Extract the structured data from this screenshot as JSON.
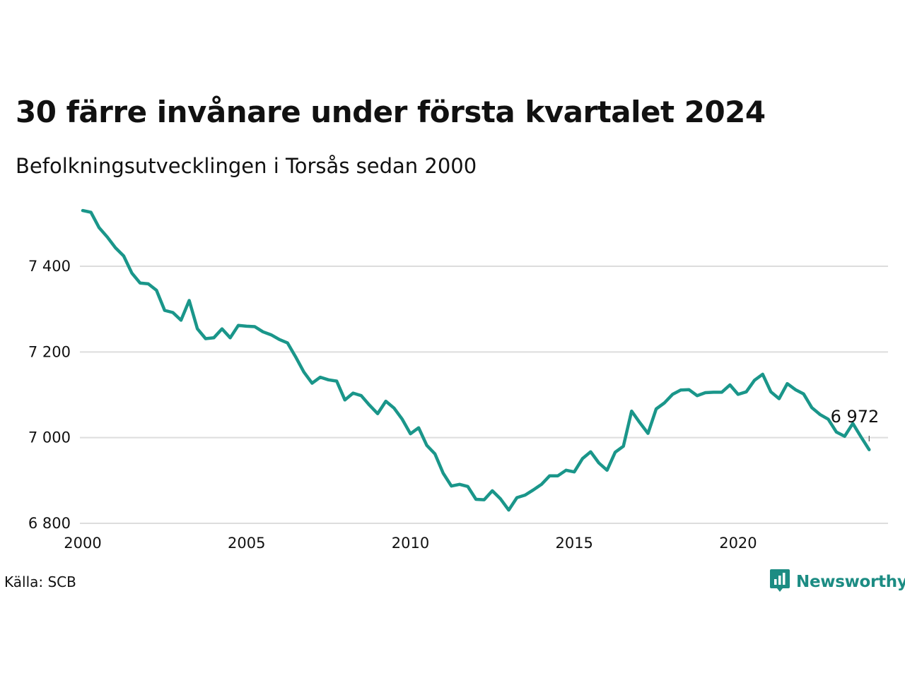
{
  "title": "30 färre invånare under första kvartalet 2024",
  "subtitle": "Befolkningsutvecklingen i Torsås sedan 2000",
  "source": "Källa: SCB",
  "brand": {
    "name": "Newsworthy",
    "icon": "newsworthy-logo-icon",
    "color": "#1c8c83"
  },
  "chart_data": {
    "type": "line",
    "title": "30 färre invånare under första kvartalet 2024",
    "subtitle": "Befolkningsutvecklingen i Torsås sedan 2000",
    "xlabel": "",
    "ylabel": "",
    "xlim": [
      2000,
      2024.5
    ],
    "ylim": [
      6800,
      7560
    ],
    "x_ticks": [
      2000,
      2005,
      2010,
      2015,
      2020
    ],
    "x_tick_labels": [
      "2000",
      "2005",
      "2010",
      "2015",
      "2020"
    ],
    "y_ticks": [
      6800,
      7000,
      7200,
      7400
    ],
    "y_tick_labels": [
      "6 800",
      "7 000",
      "7 200",
      "7 400"
    ],
    "grid": true,
    "line_color": "#1a968a",
    "end_label": "6 972",
    "series": [
      {
        "x": [
          2000.0,
          2000.25,
          2000.5,
          2000.75,
          2001.0,
          2001.25,
          2001.5,
          2001.75,
          2002.0,
          2002.25,
          2002.5,
          2002.75,
          2003.0,
          2003.25,
          2003.5,
          2003.75,
          2004.0,
          2004.25,
          2004.5,
          2004.75,
          2005.0,
          2005.25,
          2005.5,
          2005.75,
          2006.0,
          2006.25,
          2006.5,
          2006.75,
          2007.0,
          2007.25,
          2007.5,
          2007.75,
          2008.0,
          2008.25,
          2008.5,
          2008.75,
          2009.0,
          2009.25,
          2009.5,
          2009.75,
          2010.0,
          2010.25,
          2010.5,
          2010.75,
          2011.0,
          2011.25,
          2011.5,
          2011.75,
          2012.0,
          2012.25,
          2012.5,
          2012.75,
          2013.0,
          2013.25,
          2013.5,
          2013.75,
          2014.0,
          2014.25,
          2014.5,
          2014.75,
          2015.0,
          2015.25,
          2015.5,
          2015.75,
          2016.0,
          2016.25,
          2016.5,
          2016.75,
          2017.0,
          2017.25,
          2017.5,
          2017.75,
          2018.0,
          2018.25,
          2018.5,
          2018.75,
          2019.0,
          2019.25,
          2019.5,
          2019.75,
          2020.0,
          2020.25,
          2020.5,
          2020.75,
          2021.0,
          2021.25,
          2021.5,
          2021.75,
          2022.0,
          2022.25,
          2022.5,
          2022.75,
          2023.0,
          2023.25,
          2023.5,
          2023.75,
          2024.0
        ],
        "y": [
          7530,
          7526,
          7490,
          7468,
          7443,
          7424,
          7384,
          7361,
          7359,
          7344,
          7297,
          7292,
          7274,
          7320,
          7254,
          7231,
          7233,
          7254,
          7233,
          7262,
          7260,
          7259,
          7247,
          7240,
          7229,
          7221,
          7188,
          7153,
          7127,
          7141,
          7135,
          7132,
          7088,
          7104,
          7098,
          7076,
          7056,
          7085,
          7069,
          7043,
          7009,
          7023,
          6982,
          6962,
          6917,
          6887,
          6891,
          6886,
          6856,
          6855,
          6876,
          6857,
          6831,
          6860,
          6866,
          6878,
          6891,
          6911,
          6911,
          6924,
          6920,
          6951,
          6967,
          6941,
          6924,
          6966,
          6980,
          7062,
          7035,
          7010,
          7067,
          7081,
          7101,
          7111,
          7112,
          7098,
          7105,
          7106,
          7106,
          7123,
          7101,
          7107,
          7134,
          7148,
          7107,
          7091,
          7126,
          7112,
          7102,
          7070,
          7054,
          7043,
          7013,
          7003,
          7033,
          7002,
          6972
        ]
      }
    ]
  }
}
